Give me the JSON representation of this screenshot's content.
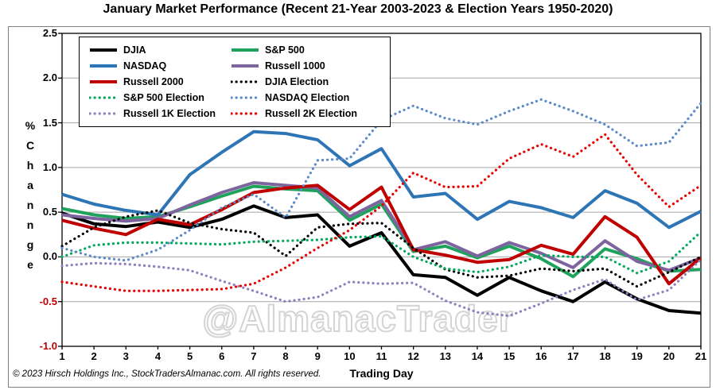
{
  "title": "January Market Performance (Recent 21-Year 2003-2023 & Election Years 1950-2020)",
  "watermark": "@AlmanacTrader",
  "footer": "© 2023 Hirsch Holdings Inc., StockTradersAlmanac.com. All rights reserved.",
  "axes": {
    "y_label_chars": [
      "%",
      "C",
      "h",
      "a",
      "n",
      "n",
      "g",
      "e"
    ],
    "x_label": "Trading Day",
    "y_ticks": [
      "2.5",
      "2.0",
      "1.5",
      "1.0",
      "0.5",
      "0.0",
      "-0.5",
      "-1.0"
    ],
    "x_ticks": [
      "1",
      "2",
      "3",
      "4",
      "5",
      "6",
      "7",
      "8",
      "9",
      "10",
      "11",
      "12",
      "13",
      "14",
      "15",
      "16",
      "17",
      "18",
      "19",
      "20",
      "21"
    ],
    "negative_tick_color": "#C00000",
    "grid_color": "#A6A6A6"
  },
  "chart_data": {
    "type": "line",
    "title": "January Market Performance (Recent 21-Year 2003-2023 & Election Years 1950-2020)",
    "xlabel": "Trading Day",
    "ylabel": "% Channge",
    "x": [
      1,
      2,
      3,
      4,
      5,
      6,
      7,
      8,
      9,
      10,
      11,
      12,
      13,
      14,
      15,
      16,
      17,
      18,
      19,
      20,
      21
    ],
    "xlim": [
      1,
      21
    ],
    "ylim": [
      -1.0,
      2.5
    ],
    "grid": "horizontal",
    "legend_position": "top-left",
    "series": [
      {
        "name": "DJIA",
        "color": "#000000",
        "style": "solid",
        "values": [
          0.49,
          0.37,
          0.34,
          0.39,
          0.33,
          0.42,
          0.57,
          0.44,
          0.47,
          0.12,
          0.27,
          -0.2,
          -0.23,
          -0.43,
          -0.23,
          -0.38,
          -0.5,
          -0.28,
          -0.47,
          -0.6,
          -0.63
        ]
      },
      {
        "name": "S&P 500",
        "color": "#1FA35C",
        "style": "solid",
        "values": [
          0.54,
          0.47,
          0.43,
          0.45,
          0.56,
          0.68,
          0.79,
          0.76,
          0.74,
          0.41,
          0.59,
          0.06,
          0.12,
          -0.01,
          0.12,
          -0.02,
          -0.22,
          0.09,
          -0.02,
          -0.16,
          -0.14
        ]
      },
      {
        "name": "NASDAQ",
        "color": "#2E75B6",
        "style": "solid",
        "values": [
          0.7,
          0.59,
          0.52,
          0.47,
          0.92,
          1.17,
          1.4,
          1.38,
          1.31,
          1.02,
          1.21,
          0.67,
          0.71,
          0.42,
          0.62,
          0.55,
          0.44,
          0.74,
          0.6,
          0.33,
          0.51
        ]
      },
      {
        "name": "Russell 1000",
        "color": "#7E649E",
        "style": "solid",
        "values": [
          0.47,
          0.43,
          0.4,
          0.43,
          0.58,
          0.72,
          0.83,
          0.8,
          0.77,
          0.45,
          0.63,
          0.08,
          0.17,
          0.01,
          0.16,
          0.04,
          -0.12,
          0.18,
          -0.05,
          -0.15,
          -0.01
        ]
      },
      {
        "name": "Russell 2000",
        "color": "#C00000",
        "style": "solid",
        "values": [
          0.41,
          0.32,
          0.25,
          0.42,
          0.36,
          0.53,
          0.72,
          0.77,
          0.8,
          0.53,
          0.78,
          0.08,
          0.02,
          -0.06,
          -0.03,
          0.13,
          0.03,
          0.45,
          0.22,
          -0.3,
          -0.01
        ]
      },
      {
        "name": "DJIA Election",
        "color": "#000000",
        "style": "dotted",
        "values": [
          0.12,
          0.33,
          0.45,
          0.52,
          0.38,
          0.31,
          0.27,
          0.01,
          0.33,
          0.37,
          0.38,
          0.1,
          -0.14,
          -0.23,
          -0.21,
          -0.13,
          -0.16,
          -0.13,
          -0.33,
          -0.17,
          0.0
        ]
      },
      {
        "name": "S&P 500 Election",
        "color": "#00A859",
        "style": "dotted",
        "values": [
          0.0,
          0.13,
          0.16,
          0.16,
          0.15,
          0.14,
          0.17,
          0.18,
          0.19,
          0.22,
          0.23,
          0.0,
          -0.13,
          -0.17,
          -0.11,
          0.02,
          0.0,
          0.0,
          -0.18,
          -0.05,
          0.28
        ]
      },
      {
        "name": "NASDAQ Election",
        "color": "#5B89C9",
        "style": "dotted",
        "values": [
          0.1,
          0.0,
          -0.04,
          0.08,
          0.3,
          0.55,
          0.7,
          0.44,
          1.08,
          1.1,
          1.53,
          1.69,
          1.55,
          1.48,
          1.63,
          1.76,
          1.63,
          1.48,
          1.24,
          1.28,
          1.72
        ]
      },
      {
        "name": "Russell 1K Election",
        "color": "#8F7FC0",
        "style": "dotted",
        "values": [
          -0.1,
          -0.07,
          -0.08,
          -0.11,
          -0.15,
          -0.27,
          -0.38,
          -0.5,
          -0.45,
          -0.28,
          -0.3,
          -0.29,
          -0.49,
          -0.62,
          -0.66,
          -0.52,
          -0.37,
          -0.25,
          -0.48,
          -0.37,
          -0.03
        ]
      },
      {
        "name": "Russell 2K Election",
        "color": "#E60000",
        "style": "dotted",
        "values": [
          -0.28,
          -0.33,
          -0.38,
          -0.38,
          -0.37,
          -0.36,
          -0.3,
          -0.12,
          0.1,
          0.3,
          0.57,
          0.94,
          0.78,
          0.79,
          1.1,
          1.26,
          1.12,
          1.37,
          0.92,
          0.56,
          0.8
        ]
      }
    ]
  }
}
